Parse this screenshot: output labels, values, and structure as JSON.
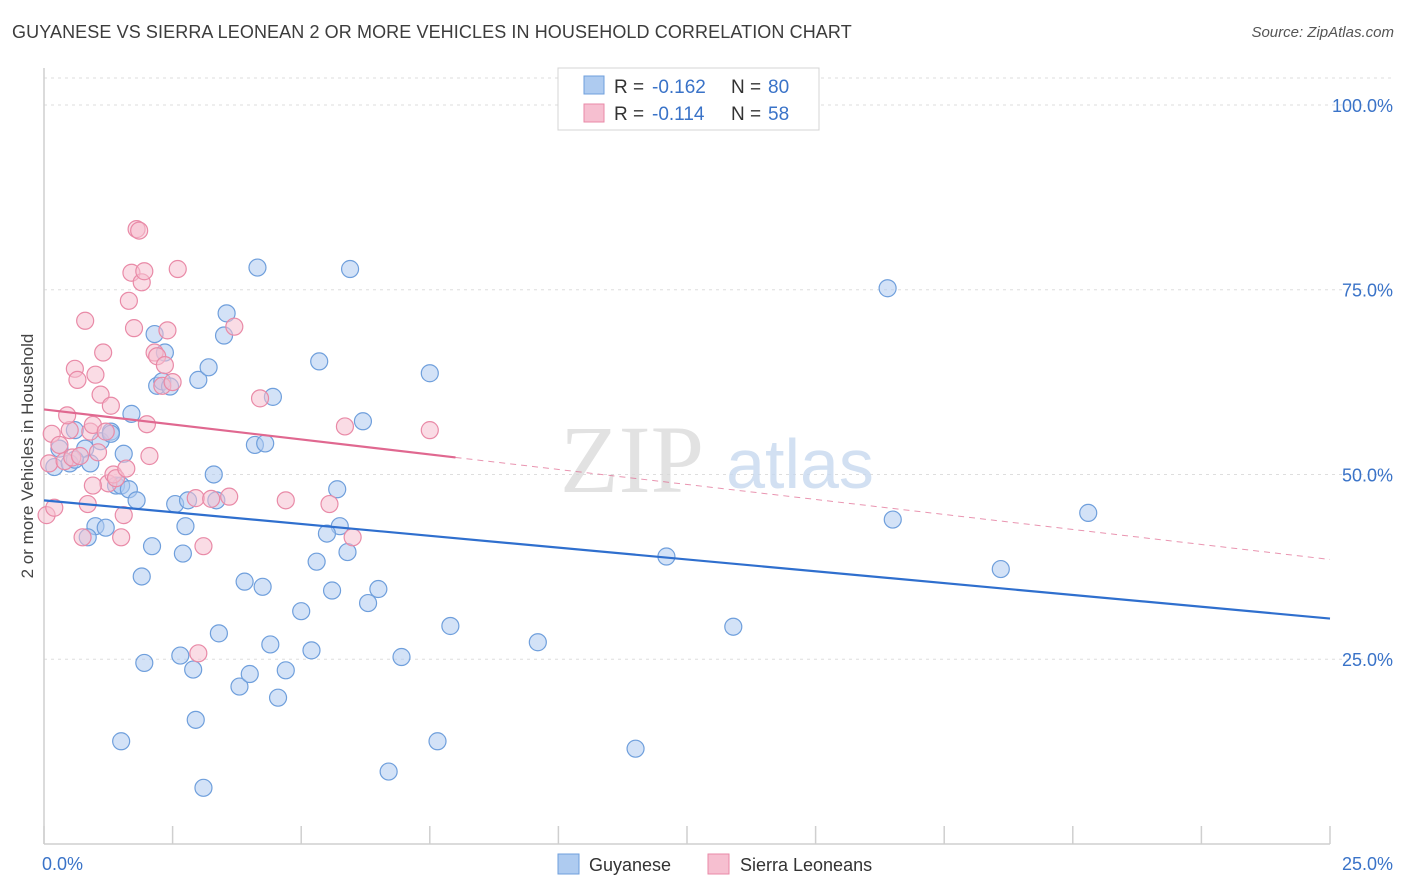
{
  "header": {
    "title": "GUYANESE VS SIERRA LEONEAN 2 OR MORE VEHICLES IN HOUSEHOLD CORRELATION CHART",
    "source": "Source: ZipAtlas.com"
  },
  "watermark": {
    "zip": "ZIP",
    "atlas": "atlas"
  },
  "legend_box": {
    "rows": [
      {
        "r_label": "R =",
        "r_value": "-0.162",
        "n_label": "N =",
        "n_value": "80"
      },
      {
        "r_label": "R =",
        "r_value": "-0.114",
        "n_label": "N =",
        "n_value": "58"
      }
    ]
  },
  "colors": {
    "blue_fill": "#aecbf0",
    "blue_stroke": "#6f9fdc",
    "blue_line": "#2f6fce",
    "pink_fill": "#f6bfd0",
    "pink_stroke": "#e98aa7",
    "pink_line": "#e06890",
    "value_text": "#3a73c8"
  },
  "chart_data": {
    "type": "scatter",
    "title": "GUYANESE VS SIERRA LEONEAN 2 OR MORE VEHICLES IN HOUSEHOLD CORRELATION CHART",
    "xlabel": "",
    "ylabel": "2 or more Vehicles in Household",
    "xlim": [
      0,
      25
    ],
    "ylim": [
      0,
      105
    ],
    "x_tick_labels": [
      "0.0%",
      "25.0%"
    ],
    "y_ticks": [
      {
        "value": 25,
        "label": "25.0%"
      },
      {
        "value": 50,
        "label": "50.0%"
      },
      {
        "value": 75,
        "label": "75.0%"
      },
      {
        "value": 100,
        "label": "100.0%"
      }
    ],
    "grid": true,
    "legend_position": "bottom-center",
    "series": [
      {
        "name": "Guyanese",
        "color": "blue",
        "R": -0.162,
        "N": 80,
        "trend": {
          "x0": 0,
          "y0": 46.5,
          "x1": 25,
          "y1": 30.5,
          "dashed_from": null
        },
        "points": [
          [
            0.2,
            51.0
          ],
          [
            0.3,
            53.5
          ],
          [
            0.5,
            51.5
          ],
          [
            0.6,
            56.0
          ],
          [
            0.8,
            53.5
          ],
          [
            0.9,
            51.5
          ],
          [
            1.0,
            43.0
          ],
          [
            0.85,
            41.5
          ],
          [
            1.1,
            54.5
          ],
          [
            1.2,
            42.8
          ],
          [
            1.3,
            55.8
          ],
          [
            1.4,
            48.5
          ],
          [
            1.3,
            55.5
          ],
          [
            1.5,
            48.5
          ],
          [
            1.55,
            52.8
          ],
          [
            1.65,
            48.0
          ],
          [
            1.7,
            58.2
          ],
          [
            1.8,
            46.5
          ],
          [
            1.9,
            36.2
          ],
          [
            1.95,
            24.5
          ],
          [
            2.1,
            40.3
          ],
          [
            2.15,
            69.0
          ],
          [
            2.2,
            62.0
          ],
          [
            2.3,
            62.6
          ],
          [
            2.35,
            66.5
          ],
          [
            2.45,
            61.9
          ],
          [
            2.55,
            46.0
          ],
          [
            2.65,
            25.5
          ],
          [
            2.7,
            39.3
          ],
          [
            2.75,
            43.0
          ],
          [
            2.9,
            23.6
          ],
          [
            2.95,
            16.8
          ],
          [
            3.0,
            62.8
          ],
          [
            3.1,
            7.6
          ],
          [
            3.2,
            64.5
          ],
          [
            3.3,
            50.0
          ],
          [
            3.35,
            46.5
          ],
          [
            3.4,
            28.5
          ],
          [
            3.5,
            68.8
          ],
          [
            3.55,
            71.8
          ],
          [
            3.8,
            21.3
          ],
          [
            3.9,
            35.5
          ],
          [
            4.0,
            23.0
          ],
          [
            4.1,
            54.0
          ],
          [
            4.15,
            78.0
          ],
          [
            4.25,
            34.8
          ],
          [
            4.3,
            54.2
          ],
          [
            4.4,
            27.0
          ],
          [
            4.45,
            60.5
          ],
          [
            4.55,
            19.8
          ],
          [
            4.7,
            23.5
          ],
          [
            5.0,
            31.5
          ],
          [
            5.2,
            26.2
          ],
          [
            5.3,
            38.2
          ],
          [
            5.35,
            65.3
          ],
          [
            5.6,
            34.3
          ],
          [
            5.7,
            48.0
          ],
          [
            5.75,
            43.0
          ],
          [
            5.9,
            39.5
          ],
          [
            5.95,
            77.8
          ],
          [
            6.2,
            57.2
          ],
          [
            6.3,
            32.6
          ],
          [
            6.5,
            34.5
          ],
          [
            6.7,
            9.8
          ],
          [
            6.95,
            25.3
          ],
          [
            7.5,
            63.7
          ],
          [
            7.65,
            13.9
          ],
          [
            7.9,
            29.5
          ],
          [
            9.6,
            27.3
          ],
          [
            11.5,
            12.9
          ],
          [
            12.1,
            38.9
          ],
          [
            13.4,
            29.4
          ],
          [
            16.4,
            75.2
          ],
          [
            16.5,
            43.9
          ],
          [
            18.6,
            37.2
          ],
          [
            20.3,
            44.8
          ],
          [
            1.5,
            13.9
          ],
          [
            0.6,
            52.0
          ],
          [
            2.8,
            46.5
          ],
          [
            5.5,
            42.0
          ]
        ]
      },
      {
        "name": "Sierra Leoneans",
        "color": "pink",
        "R": -0.114,
        "N": 58,
        "trend": {
          "x0": 0,
          "y0": 58.8,
          "x1": 25,
          "y1": 38.5,
          "dashed_from": 8.0
        },
        "points": [
          [
            0.05,
            44.5
          ],
          [
            0.1,
            51.5
          ],
          [
            0.15,
            55.5
          ],
          [
            0.2,
            45.5
          ],
          [
            0.3,
            54.0
          ],
          [
            0.4,
            51.8
          ],
          [
            0.5,
            56.0
          ],
          [
            0.55,
            52.3
          ],
          [
            0.6,
            64.3
          ],
          [
            0.65,
            62.8
          ],
          [
            0.7,
            52.5
          ],
          [
            0.75,
            41.5
          ],
          [
            0.8,
            70.8
          ],
          [
            0.85,
            46.0
          ],
          [
            0.9,
            55.8
          ],
          [
            0.95,
            56.7
          ],
          [
            1.0,
            63.5
          ],
          [
            1.05,
            53.0
          ],
          [
            1.1,
            60.8
          ],
          [
            1.15,
            66.5
          ],
          [
            1.2,
            55.8
          ],
          [
            1.25,
            48.8
          ],
          [
            1.3,
            59.3
          ],
          [
            1.35,
            50.0
          ],
          [
            1.4,
            49.5
          ],
          [
            1.5,
            41.5
          ],
          [
            1.6,
            50.8
          ],
          [
            1.65,
            73.5
          ],
          [
            1.7,
            77.3
          ],
          [
            1.75,
            69.8
          ],
          [
            1.8,
            83.2
          ],
          [
            1.85,
            83.0
          ],
          [
            1.9,
            76.0
          ],
          [
            1.95,
            77.5
          ],
          [
            2.0,
            56.8
          ],
          [
            2.05,
            52.5
          ],
          [
            2.15,
            66.5
          ],
          [
            2.2,
            66.0
          ],
          [
            2.3,
            62.0
          ],
          [
            2.35,
            64.8
          ],
          [
            2.4,
            69.5
          ],
          [
            2.6,
            77.8
          ],
          [
            2.95,
            46.8
          ],
          [
            3.0,
            25.8
          ],
          [
            3.1,
            40.3
          ],
          [
            3.25,
            46.7
          ],
          [
            3.6,
            47.0
          ],
          [
            3.7,
            70.0
          ],
          [
            4.2,
            60.3
          ],
          [
            4.7,
            46.5
          ],
          [
            5.55,
            46.0
          ],
          [
            5.85,
            56.5
          ],
          [
            6.0,
            41.5
          ],
          [
            7.5,
            56.0
          ],
          [
            0.45,
            58.0
          ],
          [
            0.95,
            48.5
          ],
          [
            1.55,
            44.5
          ],
          [
            2.5,
            62.5
          ]
        ]
      }
    ]
  }
}
